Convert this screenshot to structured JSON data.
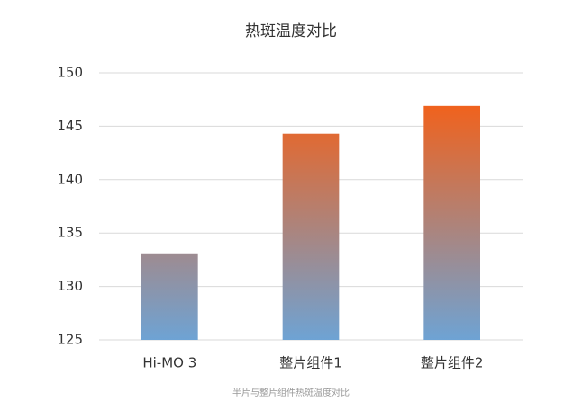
{
  "chart_data": {
    "type": "bar",
    "title": "热斑温度对比",
    "caption": "半片与整片组件热斑温度对比",
    "categories": [
      "Hi-MO 3",
      "整片组件1",
      "整片组件2"
    ],
    "values": [
      133.1,
      144.3,
      146.9
    ],
    "gradient": [
      "#6ea3d4",
      "#f0621d"
    ],
    "ylim": [
      125,
      150
    ],
    "yticks": [
      125,
      130,
      135,
      140,
      145,
      150
    ],
    "grid": true
  }
}
